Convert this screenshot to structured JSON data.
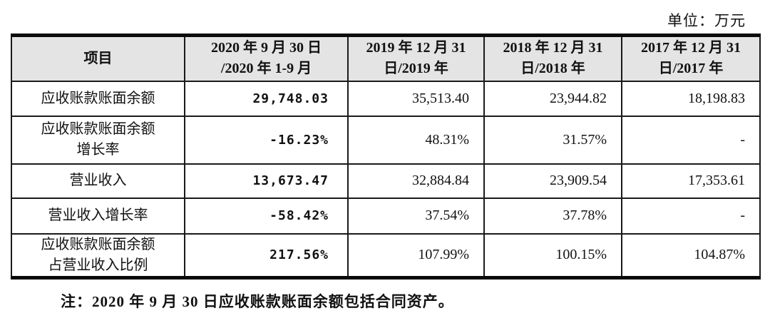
{
  "unit_label": "单位：万元",
  "table": {
    "headers": [
      "项目",
      "2020 年 9 月 30 日\n/2020 年 1-9 月",
      "2019 年 12 月 31\n日/2019 年",
      "2018 年 12 月 31\n日/2018 年",
      "2017 年 12 月 31\n日/2017 年"
    ],
    "rows": [
      {
        "label": "应收账款账面余额",
        "values": [
          "29,748.03",
          "35,513.40",
          "23,944.82",
          "18,198.83"
        ]
      },
      {
        "label": "应收账款账面余额\n增长率",
        "values": [
          "-16.23%",
          "48.31%",
          "31.57%",
          "-"
        ]
      },
      {
        "label": "营业收入",
        "values": [
          "13,673.47",
          "32,884.84",
          "23,909.54",
          "17,353.61"
        ]
      },
      {
        "label": "营业收入增长率",
        "values": [
          "-58.42%",
          "37.54%",
          "37.78%",
          "-"
        ]
      },
      {
        "label": "应收账款账面余额\n占营业收入比例",
        "values": [
          "217.56%",
          "107.99%",
          "100.15%",
          "104.87%"
        ]
      }
    ]
  },
  "note": "注：2020 年 9 月 30 日应收账款账面余额包括合同资产。",
  "colors": {
    "header_bg": "#e4e4e4",
    "border": "#1a1a1a",
    "thick_rule": "#0a0a0a",
    "text": "#111111",
    "page_bg": "#ffffff"
  }
}
